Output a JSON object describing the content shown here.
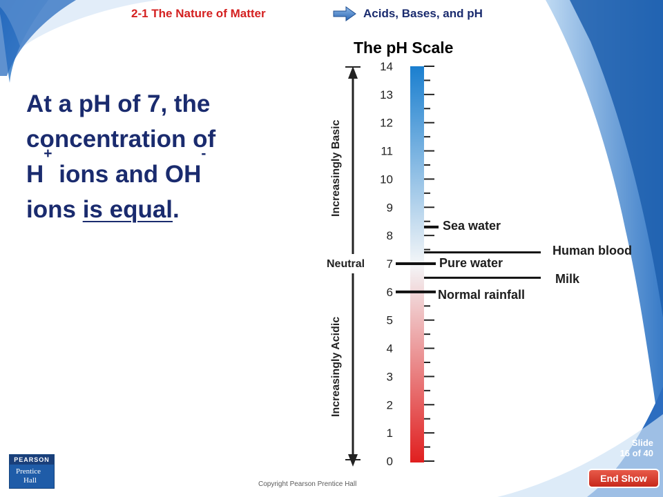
{
  "header": {
    "chapter": "2-1 The Nature of Matter",
    "section": "Acids, Bases, and pH"
  },
  "scale_title": "The pH Scale",
  "main_text": {
    "line1": "At a pH of 7, the",
    "line2": "concentration of",
    "line3_a": "H",
    "line3_sup": "+",
    "line3_b": " ions and OH",
    "line3_sup2": "-",
    "line4_a": "ions ",
    "line4_u": "is equal",
    "line4_b": "."
  },
  "ph_scale": {
    "ticks": [
      "0",
      "1",
      "2",
      "3",
      "4",
      "5",
      "6",
      "7",
      "8",
      "9",
      "10",
      "11",
      "12",
      "13",
      "14"
    ],
    "axis_basic": "Increasingly Basic",
    "axis_neutral": "Neutral",
    "axis_acidic": "Increasingly Acidic",
    "colors": {
      "basic": "#1b7fcf",
      "neutral": "#f4f6f8",
      "acidic": "#e01f1f"
    }
  },
  "markers": [
    {
      "label": "Sea water",
      "ph": 8.3
    },
    {
      "label": "Human blood",
      "ph": 7.4
    },
    {
      "label": "Pure water",
      "ph": 7.0
    },
    {
      "label": "Milk",
      "ph": 6.5
    },
    {
      "label": "Normal rainfall",
      "ph": 6.0
    }
  ],
  "footer": {
    "publisher_top": "PEARSON",
    "publisher_l1": "Prentice",
    "publisher_l2": "Hall",
    "copyright": "Copyright Pearson Prentice Hall",
    "slide_label": "Slide",
    "slide_num": "16 of 40",
    "end_show": "End Show"
  }
}
